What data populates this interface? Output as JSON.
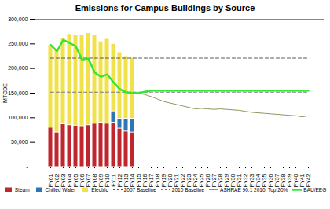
{
  "chart_data": {
    "type": "bar",
    "title": "Emissions for Campus Buildings by Source",
    "y_label": "MTCDE",
    "stacked": true,
    "grid": false,
    "legend": "bottom",
    "categories": [
      "FY01",
      "FY02",
      "FY03",
      "FY04",
      "FY05",
      "FY06",
      "FY07",
      "FY08",
      "FY09",
      "FY10",
      "FY11",
      "FY12",
      "FY13",
      "FY14",
      "FY15",
      "FY16",
      "FY17",
      "FY18",
      "FY19",
      "FY20",
      "FY21",
      "FY22",
      "FY23",
      "FY24",
      "FY25",
      "FY26",
      "FY27",
      "FY28",
      "FY29",
      "FY30",
      "FY31",
      "FY32",
      "FY33",
      "FY34",
      "FY35",
      "FY36",
      "FY37",
      "FY38",
      "FY39",
      "FY40",
      "FY41",
      "FY42"
    ],
    "ylim": [
      0,
      300000
    ],
    "yticks": [
      {
        "value": 0,
        "label": "-"
      },
      {
        "value": 50000,
        "label": "50,000"
      },
      {
        "value": 100000,
        "label": "100,000"
      },
      {
        "value": 150000,
        "label": "150,000"
      },
      {
        "value": 200000,
        "label": "200,000"
      },
      {
        "value": 250000,
        "label": "250,000"
      },
      {
        "value": 300000,
        "label": "300,000"
      }
    ],
    "series": [
      {
        "name": "Steam",
        "type": "bar",
        "color": "#c0262d",
        "values": [
          80000,
          70000,
          87000,
          85000,
          84000,
          83000,
          85000,
          88000,
          90000,
          88000,
          90000,
          78000,
          72000,
          70000,
          null,
          null,
          null,
          null,
          null,
          null,
          null,
          null,
          null,
          null,
          null,
          null,
          null,
          null,
          null,
          null,
          null,
          null,
          null,
          null,
          null,
          null,
          null,
          null,
          null,
          null,
          null,
          null
        ]
      },
      {
        "name": "Chilled Water",
        "type": "bar",
        "color": "#2e75b6",
        "values": [
          0,
          0,
          0,
          0,
          0,
          0,
          0,
          0,
          0,
          0,
          23000,
          20000,
          26000,
          28000,
          null,
          null,
          null,
          null,
          null,
          null,
          null,
          null,
          null,
          null,
          null,
          null,
          null,
          null,
          null,
          null,
          null,
          null,
          null,
          null,
          null,
          null,
          null,
          null,
          null,
          null,
          null,
          null
        ]
      },
      {
        "name": "Electric",
        "type": "bar",
        "color": "#f2e24a",
        "values": [
          168000,
          168000,
          175000,
          185000,
          184000,
          185000,
          187000,
          180000,
          165000,
          172000,
          137000,
          135000,
          127000,
          124000,
          null,
          null,
          null,
          null,
          null,
          null,
          null,
          null,
          null,
          null,
          null,
          null,
          null,
          null,
          null,
          null,
          null,
          null,
          null,
          null,
          null,
          null,
          null,
          null,
          null,
          null,
          null,
          null
        ]
      },
      {
        "name": "2007 Baseline",
        "type": "line",
        "line_style": "dashed",
        "color": "#555555",
        "values": [
          221000,
          221000,
          221000,
          221000,
          221000,
          221000,
          221000,
          221000,
          221000,
          221000,
          221000,
          221000,
          221000,
          221000,
          221000,
          221000,
          221000,
          221000,
          221000,
          221000,
          221000,
          221000,
          221000,
          221000,
          221000,
          221000,
          221000,
          221000,
          221000,
          221000,
          221000,
          221000,
          221000,
          221000,
          221000,
          221000,
          221000,
          221000,
          221000,
          221000,
          221000,
          221000
        ]
      },
      {
        "name": "2010 Baseline",
        "type": "line",
        "line_style": "dashed",
        "color": "#777777",
        "values": [
          152000,
          152000,
          152000,
          152000,
          152000,
          152000,
          152000,
          152000,
          152000,
          152000,
          152000,
          152000,
          152000,
          152000,
          152000,
          152000,
          152000,
          152000,
          152000,
          152000,
          152000,
          152000,
          152000,
          152000,
          152000,
          152000,
          152000,
          152000,
          152000,
          152000,
          152000,
          152000,
          152000,
          152000,
          152000,
          152000,
          152000,
          152000,
          152000,
          152000,
          152000,
          152000
        ]
      },
      {
        "name": "ASHRAE 90.1 2010, Top 20%",
        "type": "line",
        "line_style": "solid",
        "color": "#8a9a5b",
        "values": [
          null,
          null,
          null,
          null,
          null,
          null,
          null,
          null,
          null,
          null,
          null,
          null,
          null,
          null,
          150000,
          147000,
          143000,
          138000,
          133000,
          130000,
          127000,
          124000,
          121000,
          118000,
          119000,
          118000,
          117000,
          118000,
          117000,
          116000,
          115000,
          113000,
          111000,
          110000,
          109000,
          108000,
          107000,
          106000,
          105000,
          104000,
          102000,
          104000
        ]
      },
      {
        "name": "BAU/EEG",
        "type": "line",
        "line_style": "solid",
        "color": "#33e633",
        "values": [
          248000,
          235000,
          258000,
          252000,
          245000,
          218000,
          220000,
          192000,
          183000,
          188000,
          172000,
          158000,
          152000,
          150000,
          150000,
          153000,
          155000,
          155000,
          155000,
          155000,
          155000,
          155000,
          155000,
          155000,
          155000,
          155000,
          155000,
          155000,
          155000,
          155000,
          155000,
          155000,
          155000,
          155000,
          155000,
          155000,
          155000,
          155000,
          155000,
          155000,
          155000,
          155000
        ]
      }
    ]
  }
}
